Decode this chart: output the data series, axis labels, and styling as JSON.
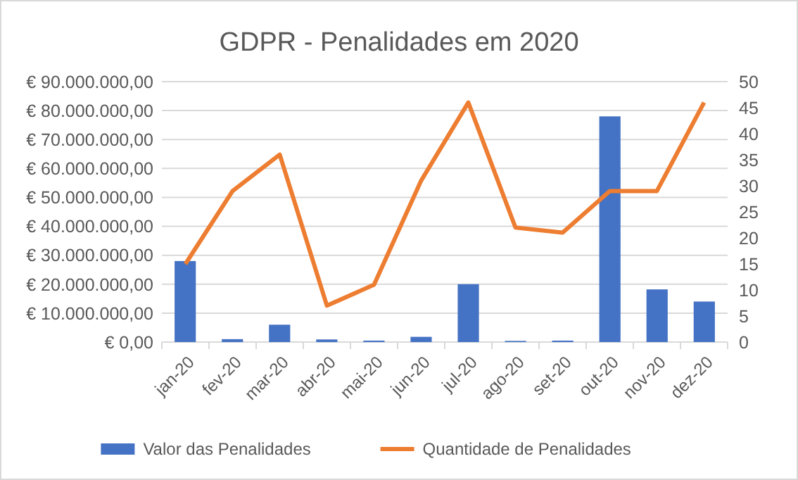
{
  "chart_data": {
    "type": "bar",
    "title": "GDPR - Penalidades em 2020",
    "categories": [
      "jan-20",
      "fev-20",
      "mar-20",
      "abr-20",
      "mai-20",
      "jun-20",
      "jul-20",
      "ago-20",
      "set-20",
      "out-20",
      "nov-20",
      "dez-20"
    ],
    "series": [
      {
        "name": "Valor das Penalidades",
        "color": "#4472c4",
        "values": [
          28000000,
          1000000,
          6000000,
          900000,
          500000,
          1800000,
          20000000,
          400000,
          500000,
          78000000,
          18200000,
          14000000
        ]
      },
      {
        "name": "Quantidade de Penalidades",
        "type": "line",
        "axis": "y2",
        "color": "#ed7d31",
        "values": [
          15,
          29,
          36,
          7,
          11,
          31,
          46,
          22,
          21,
          29,
          29,
          46
        ]
      }
    ],
    "ylim": [
      0,
      90000000
    ],
    "yticks": [
      {
        "value": 0,
        "label": "€ 0,00"
      },
      {
        "value": 10000000,
        "label": "€ 10.000.000,00"
      },
      {
        "value": 20000000,
        "label": "€ 20.000.000,00"
      },
      {
        "value": 30000000,
        "label": "€ 30.000.000,00"
      },
      {
        "value": 40000000,
        "label": "€ 40.000.000,00"
      },
      {
        "value": 50000000,
        "label": "€ 50.000.000,00"
      },
      {
        "value": 60000000,
        "label": "€ 60.000.000,00"
      },
      {
        "value": 70000000,
        "label": "€ 70.000.000,00"
      },
      {
        "value": 80000000,
        "label": "€ 80.000.000,00"
      },
      {
        "value": 90000000,
        "label": "€ 90.000.000,00"
      }
    ],
    "y2lim": [
      0,
      50
    ],
    "y2ticks": [
      0,
      5,
      10,
      15,
      20,
      25,
      30,
      35,
      40,
      45,
      50
    ],
    "grid": "y",
    "legend": "bottom",
    "marker": "none",
    "line_style": "solid"
  }
}
